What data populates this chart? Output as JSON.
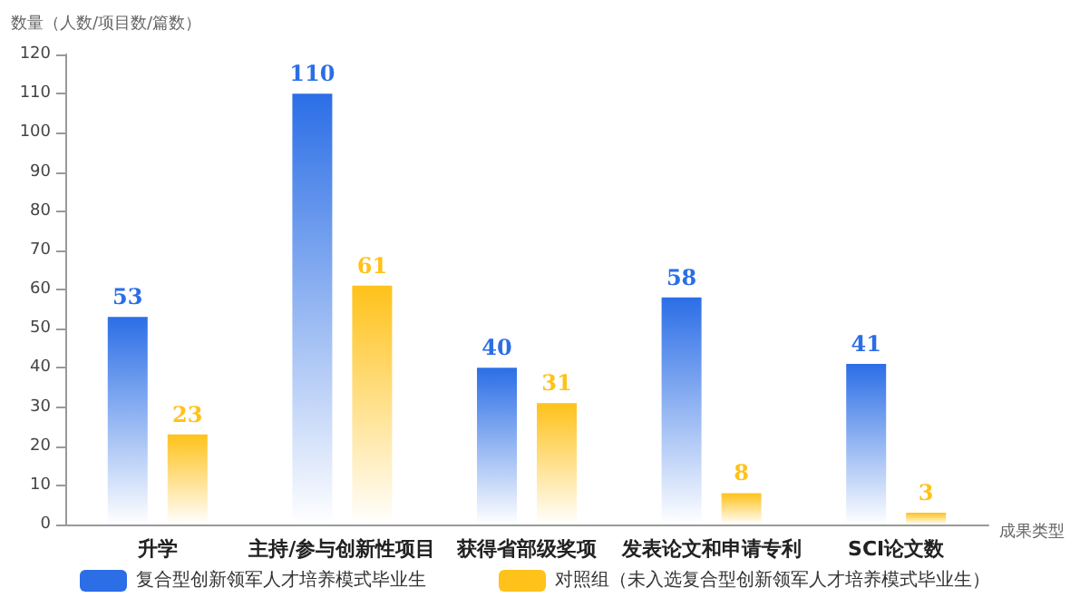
{
  "chart_data": {
    "type": "bar",
    "ylabel": "数量（人数/项目数/篇数）",
    "xlabel": "成果类型",
    "categories": [
      "升学",
      "主持/参与创新性项目",
      "获得省部级奖项",
      "发表论文和申请专利",
      "SCI论文数"
    ],
    "series": [
      {
        "name": "复合型创新领军人才培养模式毕业生",
        "color": "#2b6ee6",
        "values": [
          53,
          110,
          40,
          58,
          41
        ]
      },
      {
        "name": "对照组（未入选复合型创新领军人才培养模式毕业生）",
        "color": "#ffc21a",
        "values": [
          23,
          61,
          31,
          8,
          3
        ]
      }
    ],
    "ylim": [
      0,
      120
    ],
    "yticks": [
      0,
      10,
      20,
      30,
      40,
      50,
      60,
      70,
      80,
      90,
      100,
      110,
      120
    ],
    "grid": false,
    "legend": "bottom",
    "data_labels": true
  }
}
